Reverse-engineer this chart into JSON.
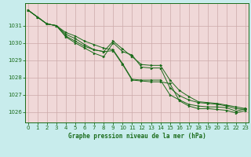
{
  "title": "Graphe pression niveau de la mer (hPa)",
  "background_color": "#c8ecec",
  "plot_bg_color": "#f0d8d8",
  "grid_color": "#ccaaaa",
  "line_color": "#1a6b1a",
  "marker_color": "#1a6b1a",
  "spine_color": "#1a6b1a",
  "tick_color": "#1a6b1a",
  "xlim": [
    -0.3,
    23.3
  ],
  "ylim": [
    1025.4,
    1032.3
  ],
  "yticks": [
    1026,
    1027,
    1028,
    1029,
    1030,
    1031
  ],
  "xticks": [
    0,
    1,
    2,
    3,
    4,
    5,
    6,
    7,
    8,
    9,
    10,
    11,
    12,
    13,
    14,
    15,
    16,
    17,
    18,
    19,
    20,
    21,
    22,
    23
  ],
  "series": [
    [
      1031.9,
      1031.5,
      1031.1,
      1031.0,
      1030.6,
      1030.4,
      1030.1,
      1029.9,
      1029.7,
      1029.6,
      1028.8,
      1027.9,
      1027.85,
      1027.85,
      1027.85,
      1027.0,
      1026.7,
      1026.45,
      1026.35,
      1026.3,
      1026.3,
      1026.25,
      1026.05,
      1026.2
    ],
    [
      1031.9,
      1031.5,
      1031.1,
      1031.0,
      1030.5,
      1030.25,
      1029.9,
      1029.6,
      1029.5,
      1030.1,
      1029.65,
      1029.2,
      1028.75,
      1028.7,
      1028.7,
      1027.85,
      1027.25,
      1026.9,
      1026.6,
      1026.55,
      1026.5,
      1026.4,
      1026.3,
      1026.2
    ],
    [
      1031.9,
      1031.5,
      1031.1,
      1031.0,
      1030.35,
      1030.0,
      1029.7,
      1029.4,
      1029.2,
      1030.0,
      1029.5,
      1029.3,
      1028.6,
      1028.55,
      1028.55,
      1027.4,
      1026.95,
      1026.7,
      1026.55,
      1026.5,
      1026.45,
      1026.35,
      1026.2,
      1026.15
    ],
    [
      1031.9,
      1031.5,
      1031.1,
      1031.0,
      1030.4,
      1030.1,
      1029.8,
      1029.6,
      1029.5,
      1029.55,
      1028.75,
      1027.85,
      1027.8,
      1027.75,
      1027.75,
      1027.65,
      1026.65,
      1026.35,
      1026.2,
      1026.2,
      1026.15,
      1026.1,
      1025.95,
      1026.1
    ]
  ]
}
